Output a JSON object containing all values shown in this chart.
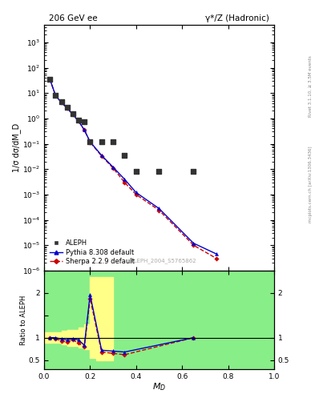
{
  "title_left": "206 GeV ee",
  "title_right": "γ*/Z (Hadronic)",
  "xlabel": "M_D",
  "ylabel_main": "1/σ dσ/dM_D",
  "ylabel_ratio": "Ratio to ALEPH",
  "watermark": "ALEPH_2004_S5765862",
  "right_label": "Rivet 3.1.10, ≥ 3.5M events",
  "right_label2": "mcplots.cern.ch [arXiv:1306.3436]",
  "aleph_x": [
    0.025,
    0.05,
    0.075,
    0.1,
    0.125,
    0.15,
    0.175,
    0.2,
    0.25,
    0.3,
    0.35,
    0.4,
    0.5,
    0.65
  ],
  "aleph_y": [
    35.0,
    8.0,
    4.5,
    2.8,
    1.5,
    0.85,
    0.75,
    0.12,
    0.12,
    0.12,
    0.035,
    0.008,
    0.008,
    0.008
  ],
  "pythia_x": [
    0.025,
    0.05,
    0.075,
    0.1,
    0.125,
    0.15,
    0.175,
    0.2,
    0.25,
    0.3,
    0.35,
    0.4,
    0.5,
    0.65,
    0.75
  ],
  "pythia_y": [
    35.0,
    8.0,
    4.2,
    2.6,
    1.4,
    0.78,
    0.35,
    0.12,
    0.035,
    0.012,
    0.004,
    0.0012,
    0.00028,
    1.2e-05,
    4.5e-06
  ],
  "sherpa_x": [
    0.025,
    0.05,
    0.075,
    0.1,
    0.125,
    0.15,
    0.175,
    0.2,
    0.25,
    0.3,
    0.35,
    0.4,
    0.5,
    0.65,
    0.75
  ],
  "sherpa_y": [
    35.0,
    8.0,
    4.2,
    2.6,
    1.4,
    0.78,
    0.35,
    0.115,
    0.033,
    0.011,
    0.003,
    0.001,
    0.00024,
    1e-05,
    3e-06
  ],
  "ratio_pythia_x": [
    0.025,
    0.05,
    0.075,
    0.1,
    0.125,
    0.15,
    0.175,
    0.2,
    0.25,
    0.3,
    0.35,
    0.65
  ],
  "ratio_pythia_y": [
    1.0,
    1.0,
    0.97,
    0.95,
    0.98,
    0.95,
    0.83,
    1.96,
    0.72,
    0.7,
    0.68,
    1.0
  ],
  "ratio_sherpa_x": [
    0.025,
    0.05,
    0.075,
    0.1,
    0.125,
    0.15,
    0.175,
    0.2,
    0.25,
    0.3,
    0.35,
    0.65
  ],
  "ratio_sherpa_y": [
    1.0,
    0.98,
    0.93,
    0.9,
    0.95,
    0.88,
    0.79,
    1.88,
    0.68,
    0.65,
    0.62,
    1.0
  ],
  "ylim_main": [
    1e-06,
    5000
  ],
  "ylim_ratio": [
    0.3,
    2.5
  ],
  "xlim": [
    0.0,
    1.0
  ],
  "color_aleph": "#333333",
  "color_pythia": "#0000cc",
  "color_sherpa": "#cc0000",
  "color_yellow": "#ffff88",
  "color_green": "#88ee88",
  "bg_color": "#ffffff"
}
